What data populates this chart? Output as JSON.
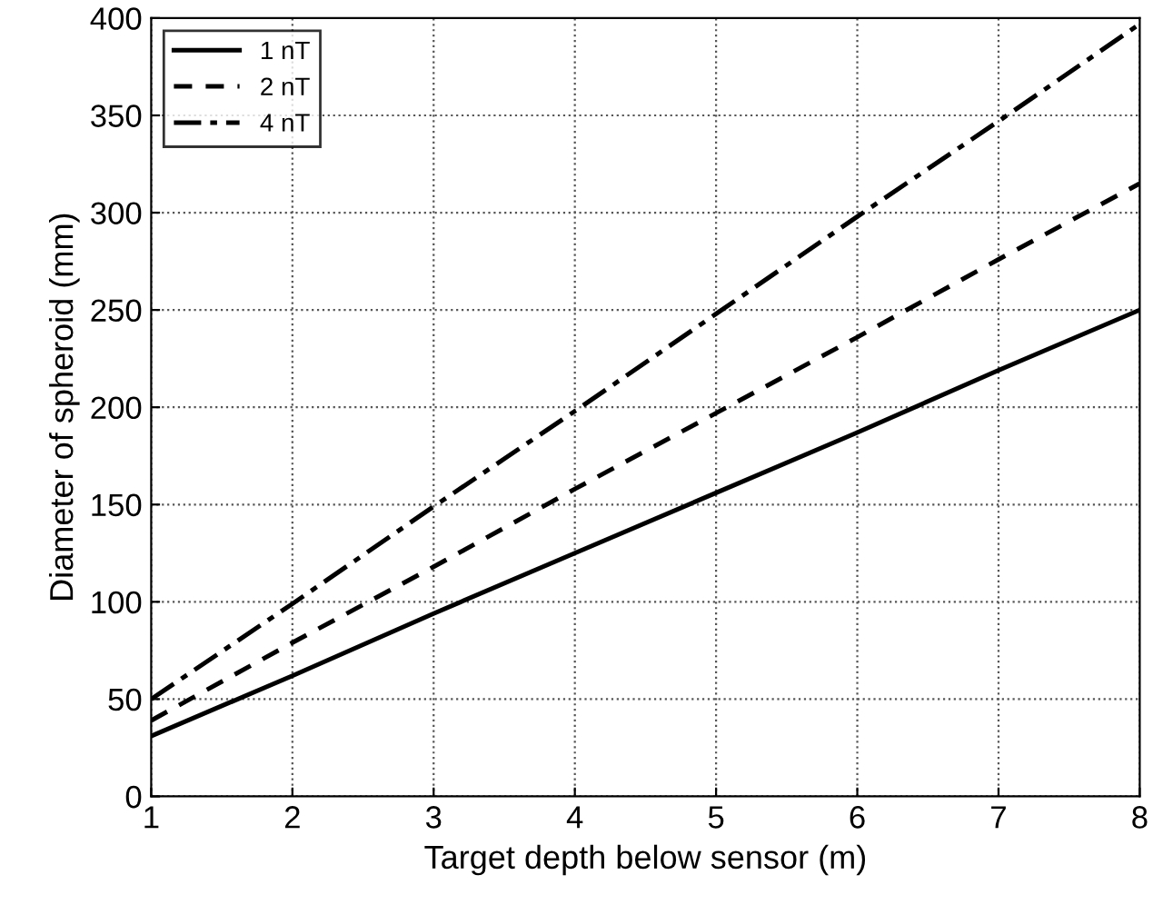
{
  "chart_data": {
    "type": "line",
    "xlabel": "Target depth below sensor (m)",
    "ylabel": "Diameter of spheroid (mm)",
    "x": [
      1,
      2,
      3,
      4,
      5,
      6,
      7,
      8
    ],
    "series": [
      {
        "name": "1 nT",
        "color": "#000000",
        "line_style": "solid",
        "values": [
          31,
          62,
          94,
          125,
          156,
          187,
          219,
          250
        ]
      },
      {
        "name": "2 nT",
        "color": "#000000",
        "line_style": "dashed",
        "values": [
          39,
          79,
          118,
          158,
          197,
          236,
          276,
          315
        ]
      },
      {
        "name": "4 nT",
        "color": "#000000",
        "line_style": "dashdot",
        "values": [
          50,
          99,
          149,
          198,
          248,
          298,
          347,
          397
        ]
      }
    ],
    "xlim": [
      1,
      8
    ],
    "ylim": [
      0,
      400
    ],
    "xticks": [
      1,
      2,
      3,
      4,
      5,
      6,
      7,
      8
    ],
    "yticks": [
      0,
      50,
      100,
      150,
      200,
      250,
      300,
      350,
      400
    ],
    "grid": true,
    "legend": "top left",
    "marker": "none"
  }
}
